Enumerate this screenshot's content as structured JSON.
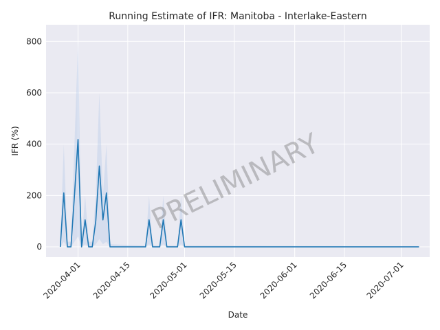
{
  "chart_data": {
    "type": "line",
    "title": "Running Estimate of IFR: Manitoba - Interlake-Eastern",
    "xlabel": "Date",
    "ylabel": "IFR (%)",
    "watermark": "PRELIMINARY",
    "x_tick_labels": [
      "2020-04-01",
      "2020-04-15",
      "2020-05-01",
      "2020-05-15",
      "2020-06-01",
      "2020-06-15",
      "2020-07-01"
    ],
    "y_ticks": [
      0,
      200,
      400,
      600,
      800
    ],
    "xlim": [
      "2020-03-23",
      "2020-07-09"
    ],
    "ylim": [
      -40,
      865
    ],
    "grid": true,
    "colors": {
      "line": "#1f77b4",
      "band": "#aec7e8",
      "plot_background": "#eaeaf2",
      "grid": "#ffffff"
    },
    "series": [
      {
        "points": [
          [
            "2020-03-27",
            0
          ],
          [
            "2020-03-28",
            210
          ],
          [
            "2020-03-29",
            0
          ],
          [
            "2020-03-30",
            0
          ],
          [
            "2020-03-31",
            200
          ],
          [
            "2020-04-01",
            418
          ],
          [
            "2020-04-02",
            0
          ],
          [
            "2020-04-03",
            105
          ],
          [
            "2020-04-04",
            0
          ],
          [
            "2020-04-05",
            0
          ],
          [
            "2020-04-06",
            100
          ],
          [
            "2020-04-07",
            315
          ],
          [
            "2020-04-08",
            105
          ],
          [
            "2020-04-09",
            210
          ],
          [
            "2020-04-10",
            0
          ],
          [
            "2020-04-20",
            0
          ],
          [
            "2020-04-21",
            105
          ],
          [
            "2020-04-22",
            0
          ],
          [
            "2020-04-24",
            0
          ],
          [
            "2020-04-25",
            105
          ],
          [
            "2020-04-26",
            0
          ],
          [
            "2020-04-29",
            0
          ],
          [
            "2020-04-30",
            105
          ],
          [
            "2020-05-01",
            0
          ],
          [
            "2020-07-06",
            0
          ]
        ],
        "band_upper": [
          [
            "2020-03-27",
            20
          ],
          [
            "2020-03-28",
            400
          ],
          [
            "2020-03-29",
            20
          ],
          [
            "2020-03-30",
            20
          ],
          [
            "2020-03-31",
            400
          ],
          [
            "2020-04-01",
            800
          ],
          [
            "2020-04-02",
            20
          ],
          [
            "2020-04-03",
            200
          ],
          [
            "2020-04-04",
            20
          ],
          [
            "2020-04-05",
            20
          ],
          [
            "2020-04-06",
            200
          ],
          [
            "2020-04-07",
            600
          ],
          [
            "2020-04-08",
            200
          ],
          [
            "2020-04-09",
            400
          ],
          [
            "2020-04-10",
            10
          ],
          [
            "2020-04-20",
            5
          ],
          [
            "2020-04-21",
            200
          ],
          [
            "2020-04-22",
            5
          ],
          [
            "2020-04-24",
            5
          ],
          [
            "2020-04-25",
            200
          ],
          [
            "2020-04-26",
            5
          ],
          [
            "2020-04-29",
            5
          ],
          [
            "2020-04-30",
            200
          ],
          [
            "2020-05-01",
            5
          ],
          [
            "2020-07-06",
            2
          ]
        ],
        "band_lower": [
          [
            "2020-03-27",
            0
          ],
          [
            "2020-03-28",
            20
          ],
          [
            "2020-03-29",
            0
          ],
          [
            "2020-03-30",
            0
          ],
          [
            "2020-03-31",
            20
          ],
          [
            "2020-04-01",
            40
          ],
          [
            "2020-04-02",
            0
          ],
          [
            "2020-04-03",
            10
          ],
          [
            "2020-04-04",
            0
          ],
          [
            "2020-04-05",
            0
          ],
          [
            "2020-04-06",
            10
          ],
          [
            "2020-04-07",
            30
          ],
          [
            "2020-04-08",
            10
          ],
          [
            "2020-04-09",
            20
          ],
          [
            "2020-04-10",
            0
          ],
          [
            "2020-04-20",
            0
          ],
          [
            "2020-04-21",
            10
          ],
          [
            "2020-04-22",
            0
          ],
          [
            "2020-04-24",
            0
          ],
          [
            "2020-04-25",
            10
          ],
          [
            "2020-04-26",
            0
          ],
          [
            "2020-04-29",
            0
          ],
          [
            "2020-04-30",
            10
          ],
          [
            "2020-05-01",
            0
          ],
          [
            "2020-07-06",
            0
          ]
        ]
      }
    ]
  }
}
